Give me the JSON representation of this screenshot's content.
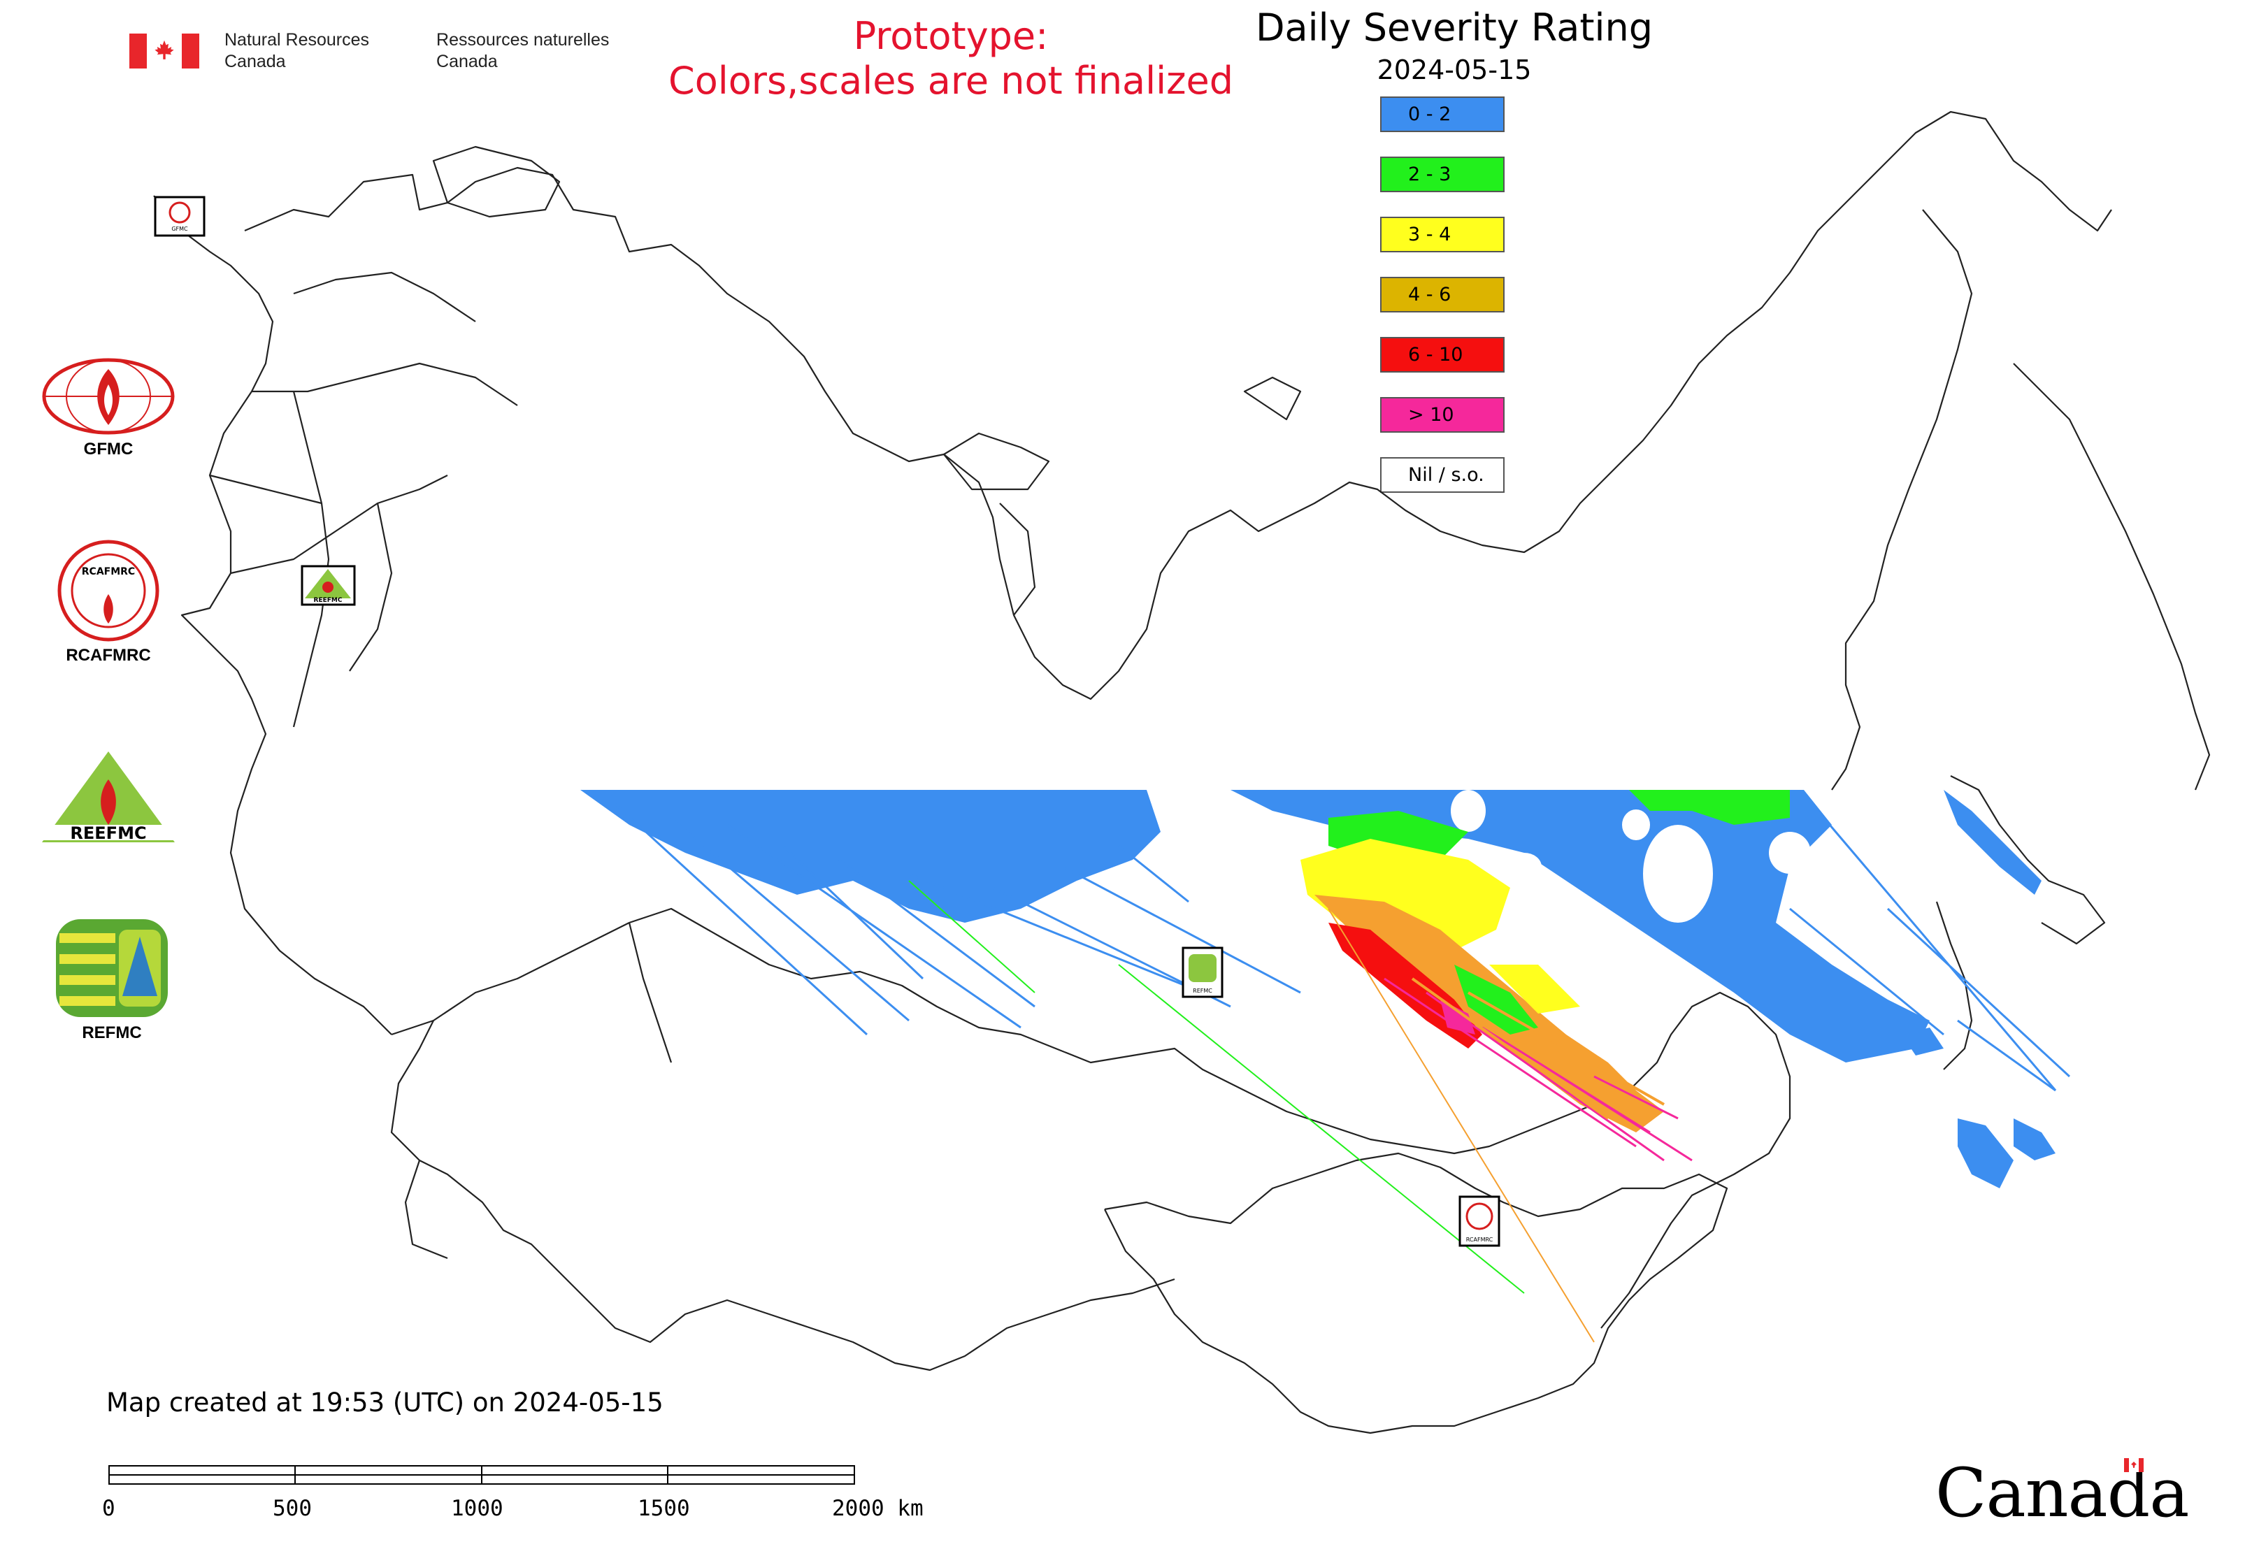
{
  "header": {
    "org_en_line1": "Natural Resources",
    "org_en_line2": "Canada",
    "org_fr_line1": "Ressources naturelles",
    "org_fr_line2": "Canada",
    "prototype_line1": "Prototype:",
    "prototype_line2": "Colors,scales are not finalized",
    "prototype_color": "#e4132e"
  },
  "title": "Daily Severity Rating",
  "date": "2024-05-15",
  "legend": [
    {
      "label": "0 - 2",
      "color": "#3c8ef0"
    },
    {
      "label": "2 - 3",
      "color": "#22f01c"
    },
    {
      "label": "3 - 4",
      "color": "#ffff1e"
    },
    {
      "label": "4 - 6",
      "color": "#dcb400"
    },
    {
      "label": "6 - 10",
      "color": "#f50f0f"
    },
    {
      "label": "> 10",
      "color": "#f5289b"
    },
    {
      "label": "Nil / s.o.",
      "color": "#ffffff"
    }
  ],
  "logos": [
    {
      "label": "GFMC",
      "icon": "gfmc-logo"
    },
    {
      "label": "RCAFMRC",
      "icon": "rcafmrc-logo"
    },
    {
      "label": "REEFMC",
      "icon": "reefmc-logo"
    },
    {
      "label": "REFMC",
      "icon": "refmc-logo"
    }
  ],
  "map_markers": [
    {
      "label": "GFMC",
      "icon": "gfmc-marker"
    },
    {
      "label": "REEFMC",
      "icon": "reefmc-marker"
    },
    {
      "label": "REFMC",
      "icon": "refmc-marker"
    },
    {
      "label": "RCAFMRC",
      "icon": "rcafmrc-marker"
    }
  ],
  "footer": {
    "created": "Map created at 19:53 (UTC) on 2024-05-15",
    "scale_ticks": [
      "0",
      "500",
      "1000",
      "1500",
      "2000 km"
    ],
    "wordmark": "Canada"
  }
}
